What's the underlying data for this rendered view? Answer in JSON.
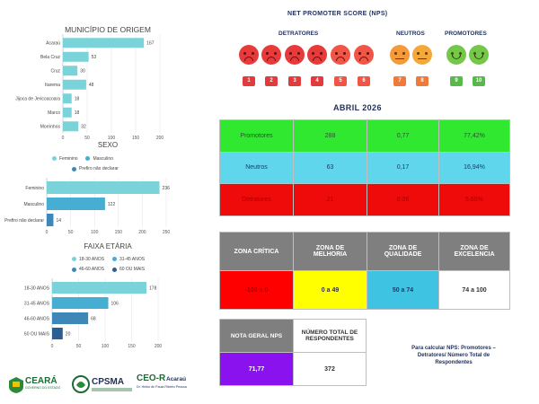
{
  "colors": {
    "teal_light": "#7ad3d8",
    "teal_mid": "#46aed2",
    "blue_mid": "#3d88b8",
    "navy": "#2b5f93",
    "promotores_bg": "#31e831",
    "neutros_bg": "#5fd6ec",
    "detratores_bg": "#f00b0b",
    "zona_header_bg": "#7f7f7f",
    "critica_bg": "#ff0000",
    "melhoria_bg": "#ffff00",
    "qualidade_bg": "#3fc3e3",
    "nota_bg": "#8a12ee"
  },
  "chart_data": [
    {
      "type": "bar",
      "orientation": "horizontal",
      "title": "MUNICÍPIO DE ORIGEM",
      "categories": [
        "Acaraú",
        "Bela Cruz",
        "Cruz",
        "Itarema",
        "Jijoca de Jericoacoara",
        "Marco",
        "Morrinhos"
      ],
      "values": [
        167,
        53,
        30,
        48,
        18,
        18,
        32
      ],
      "xlim": [
        0,
        200
      ],
      "xticks": [
        "0",
        "50",
        "100",
        "150",
        "200"
      ],
      "grid": true
    },
    {
      "type": "bar",
      "orientation": "horizontal",
      "title": "SEXO",
      "legend": [
        "Feminino",
        "Masculino",
        "Prefiro não declarar"
      ],
      "legend_position": "top",
      "categories": [
        "Feminino",
        "Masculino",
        "Prefiro não declarar"
      ],
      "values": [
        236,
        122,
        14
      ],
      "xlim": [
        0,
        250
      ],
      "xticks": [
        "0",
        "50",
        "100",
        "150",
        "200",
        "250"
      ],
      "grid": true
    },
    {
      "type": "bar",
      "orientation": "horizontal",
      "title": "FAIXA ETÁRIA",
      "legend": [
        "18-30 ANOS",
        "31-45 ANOS",
        "46-60 ANOS",
        "60 OU MAIS"
      ],
      "legend_position": "top",
      "categories": [
        "18-30 ANOS",
        "31-45 ANOS",
        "46-60 ANOS",
        "60 OU MAIS"
      ],
      "values": [
        178,
        106,
        68,
        20
      ],
      "xlim": [
        0,
        200
      ],
      "xticks": [
        "0",
        "50",
        "100",
        "150",
        "200"
      ],
      "grid": true
    }
  ],
  "nps": {
    "title": "NET PROMOTER SCORE (NPS)",
    "detratores_label": "DETRATORES",
    "neutros_label": "NEUTROS",
    "promotores_label": "PROMOTORES",
    "scores": [
      "1",
      "2",
      "3",
      "4",
      "5",
      "6",
      "7",
      "8",
      "9",
      "10"
    ]
  },
  "month": "ABRIL 2026",
  "summary_rows": [
    {
      "label": "Promotores",
      "count": "288",
      "ratio": "0,77",
      "percent": "77,42%"
    },
    {
      "label": "Neutros",
      "count": "63",
      "ratio": "0,17",
      "percent": "16,94%"
    },
    {
      "label": "Detratores",
      "count": "21",
      "ratio": "0,06",
      "percent": "5,65%"
    }
  ],
  "zones": {
    "headers": [
      "ZONA CRÍTICA",
      "ZONA DE MELHORIA",
      "ZONA DE QUALIDADE",
      "ZONA DE EXCELENCIA"
    ],
    "ranges": [
      "-100 a 0",
      "0 a 49",
      "50 a 74",
      "74 a 100"
    ]
  },
  "nota": {
    "header": "NOTA GERAL NPS",
    "value": "71,77",
    "total_header": "NÚMERO TOTAL DE RESPONDENTES",
    "total_value": "372"
  },
  "formula_note": "Para calcular NPS: Promotores – Detratores/ Número Total de Respondentes",
  "logos": {
    "ceara": "CEARÁ",
    "ceara_sub": "GOVERNO DO ESTADO",
    "cpsma": "CPSMA",
    "ceo": "CEO-R",
    "ceo_city": "Acaraú",
    "ceo_sub": "Dr. Heitor de Paula Ribeiro Pessoa"
  }
}
